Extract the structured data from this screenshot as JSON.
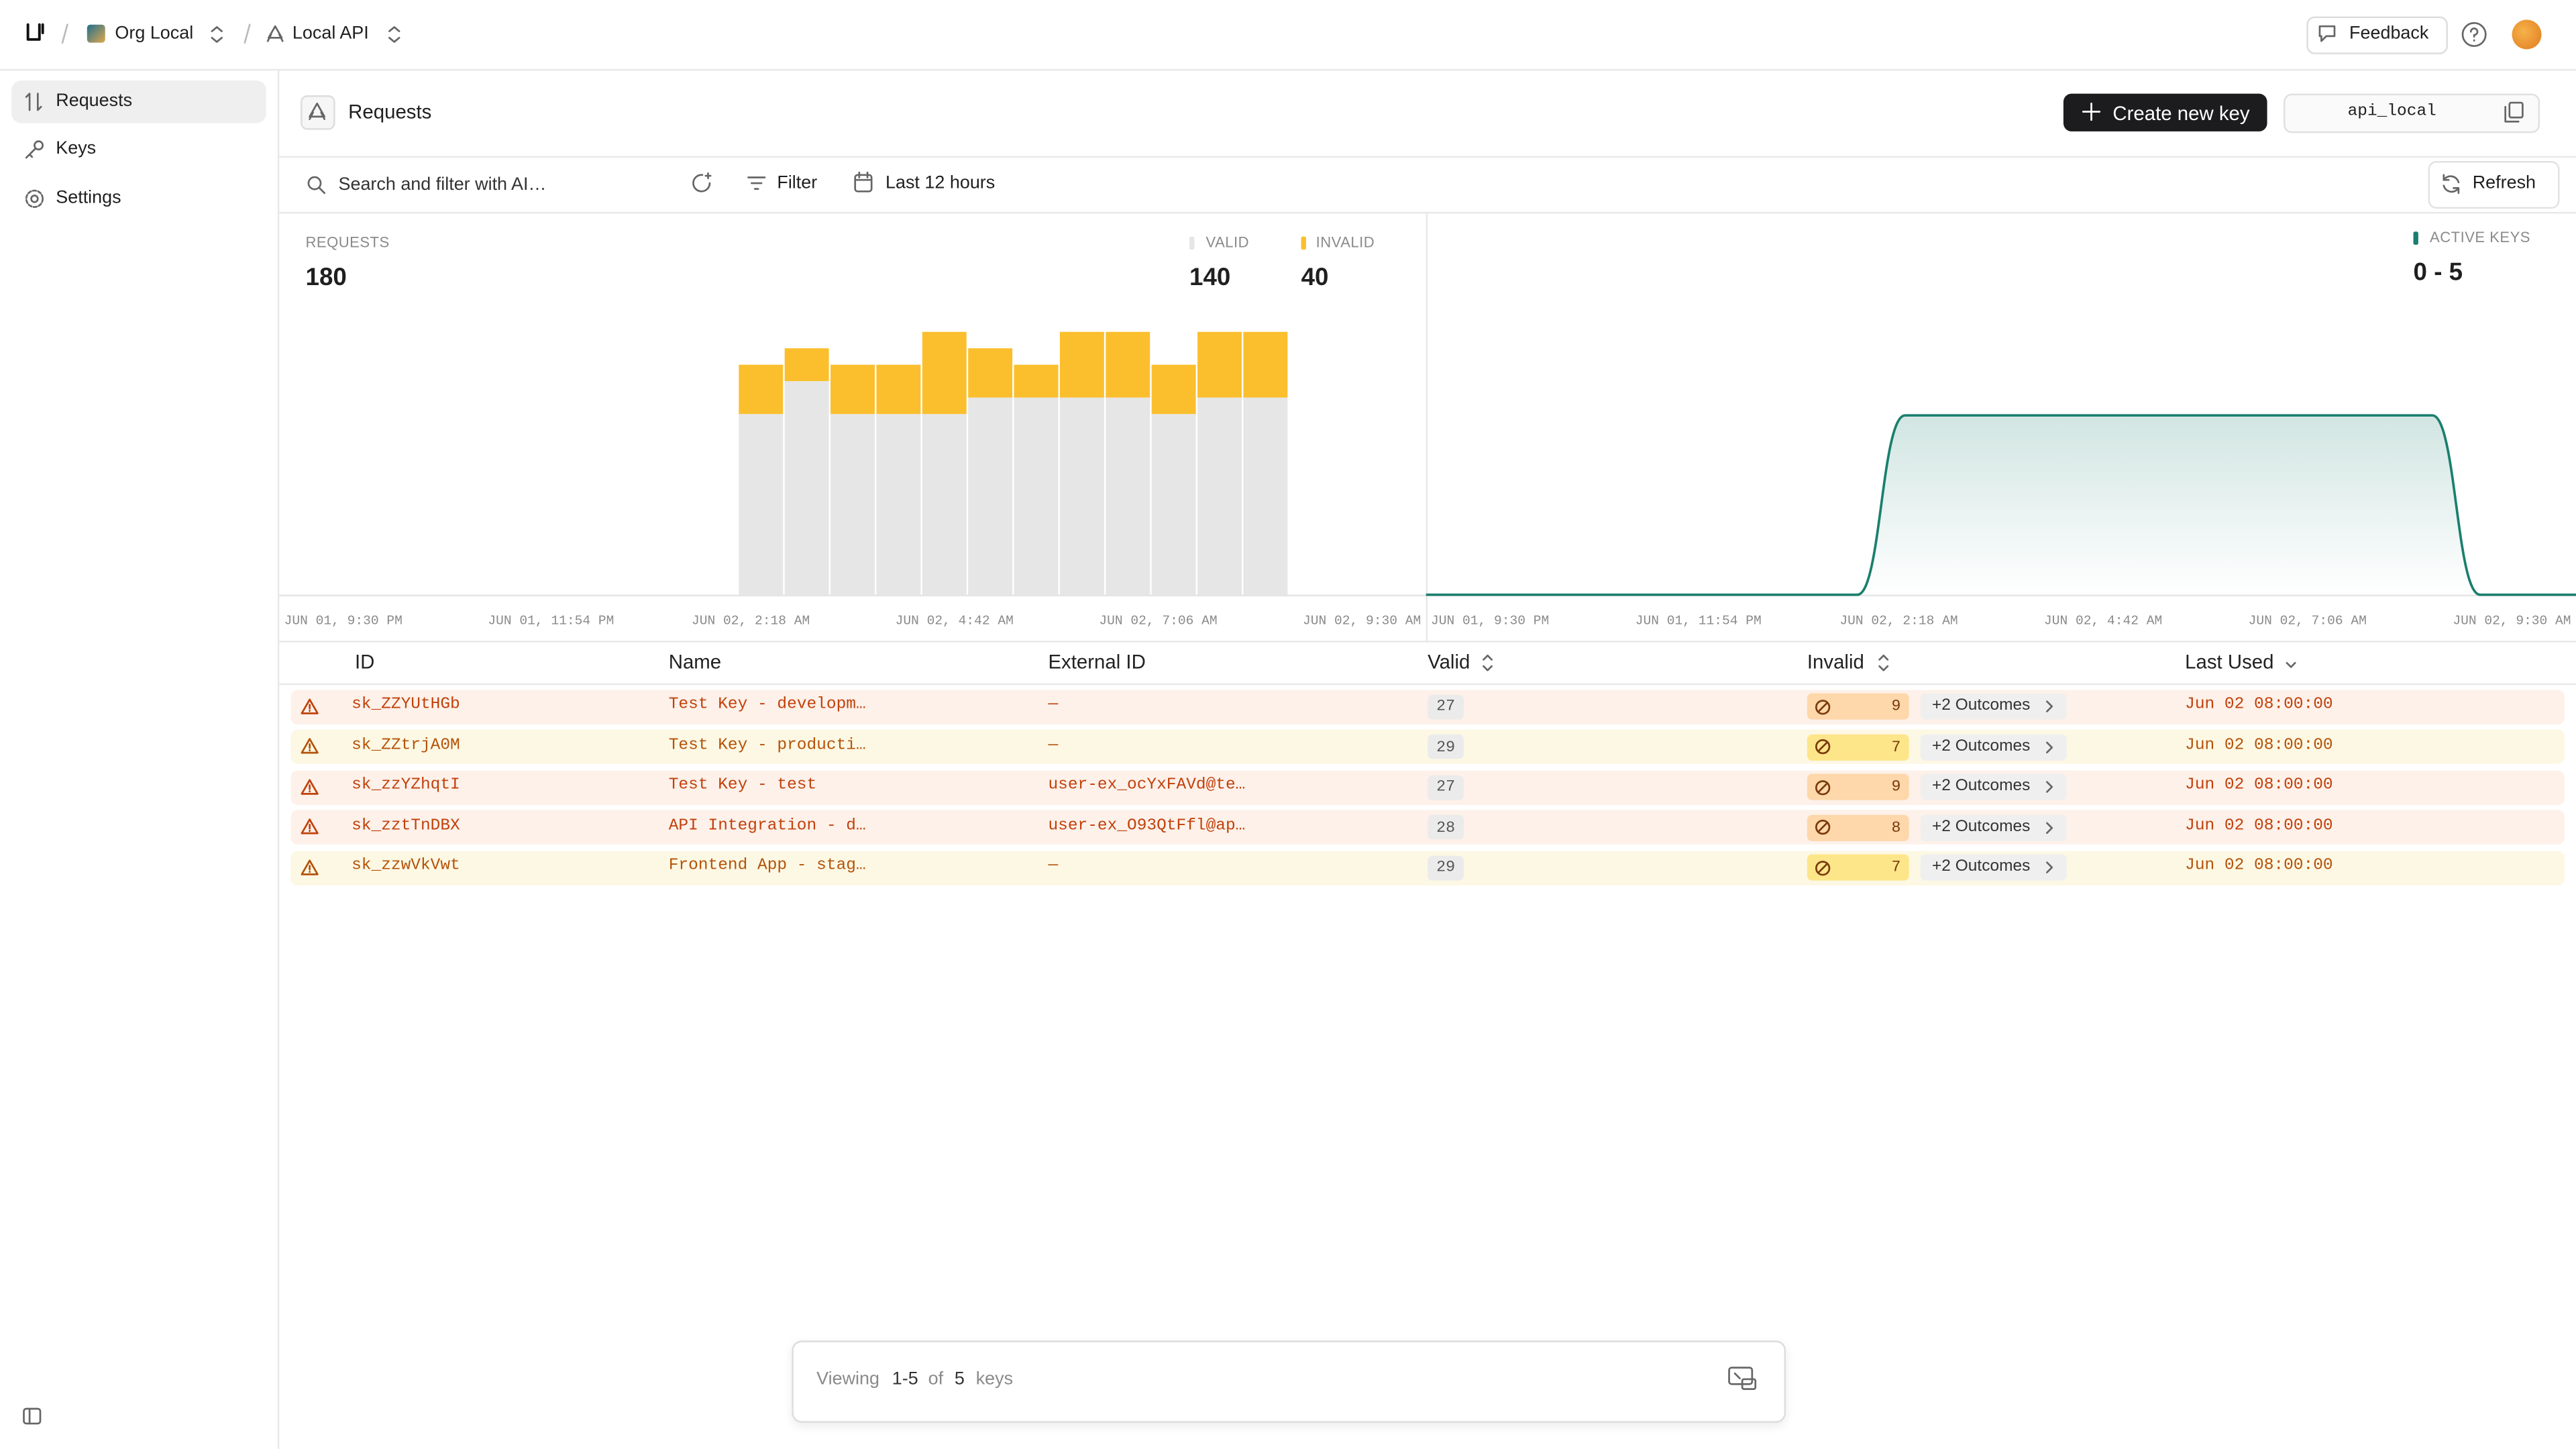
{
  "topbar": {
    "org": "Org Local",
    "api": "Local API",
    "feedback": "Feedback"
  },
  "sidebar": {
    "items": [
      "Requests",
      "Keys",
      "Settings"
    ]
  },
  "header": {
    "title": "Requests",
    "create_button": "Create new key",
    "api_id": "api_local"
  },
  "filters": {
    "search_placeholder": "Search and filter with AI…",
    "filter": "Filter",
    "time_range": "Last 12 hours",
    "refresh": "Refresh"
  },
  "chart_data": [
    {
      "type": "bar",
      "stacked": true,
      "title": "REQUESTS",
      "total": 180,
      "x_labels": [
        "JUN 01, 9:30 PM",
        "JUN 01, 11:54 PM",
        "JUN 02, 2:18 AM",
        "JUN 02, 4:42 AM",
        "JUN 02, 7:06 AM",
        "JUN 02, 9:30 AM"
      ],
      "ylim": [
        0,
        20
      ],
      "series": [
        {
          "name": "VALID",
          "color": "#e6e6e6",
          "total": 140,
          "values": [
            null,
            null,
            null,
            null,
            null,
            null,
            null,
            null,
            null,
            null,
            11,
            13,
            11,
            11,
            11,
            12,
            12,
            12,
            12,
            11,
            12,
            12,
            null,
            null,
            null
          ]
        },
        {
          "name": "INVALID",
          "color": "#fbbf2e",
          "total": 40,
          "values": [
            null,
            null,
            null,
            null,
            null,
            null,
            null,
            null,
            null,
            null,
            3,
            2,
            3,
            3,
            5,
            3,
            2,
            4,
            4,
            3,
            4,
            4,
            null,
            null,
            null
          ]
        }
      ]
    },
    {
      "type": "area",
      "title": "ACTIVE KEYS",
      "range_label": "0 - 5",
      "x_labels": [
        "JUN 01, 9:30 PM",
        "JUN 01, 11:54 PM",
        "JUN 02, 2:18 AM",
        "JUN 02, 4:42 AM",
        "JUN 02, 7:06 AM",
        "JUN 02, 9:30 AM"
      ],
      "ylim": [
        0,
        6
      ],
      "series": [
        {
          "color": "#1a7f6e",
          "values": [
            0,
            0,
            0,
            0,
            0,
            0,
            0,
            0,
            0,
            0,
            5,
            5,
            5,
            5,
            5,
            5,
            5,
            5,
            5,
            5,
            5,
            5,
            0,
            0,
            0
          ]
        }
      ]
    }
  ],
  "table": {
    "columns": [
      "ID",
      "Name",
      "External ID",
      "Valid",
      "Invalid",
      "Last Used"
    ],
    "rows": [
      {
        "id": "sk_ZZYUtHGb",
        "name": "Test Key - developm…",
        "external_id": "—",
        "valid": 27,
        "invalid": 9,
        "outcomes": "+2 Outcomes",
        "last_used": "Jun 02 08:00:00",
        "background": "#fdf1e9",
        "color": "#c2410c",
        "badge": "#fed7aa"
      },
      {
        "id": "sk_ZZtrjA0M",
        "name": "Test Key - producti…",
        "external_id": "—",
        "valid": 29,
        "invalid": 7,
        "outcomes": "+2 Outcomes",
        "last_used": "Jun 02 08:00:00",
        "background": "#fdf8e4",
        "color": "#b45309",
        "badge": "#fde68a"
      },
      {
        "id": "sk_zzYZhqtI",
        "name": "Test Key - test",
        "external_id": "user-ex_ocYxFAVd@te…",
        "valid": 27,
        "invalid": 9,
        "outcomes": "+2 Outcomes",
        "last_used": "Jun 02 08:00:00",
        "background": "#fdf1e9",
        "color": "#c2410c",
        "badge": "#fed7aa"
      },
      {
        "id": "sk_zztTnDBX",
        "name": "API Integration - d…",
        "external_id": "user-ex_O93QtFfl@ap…",
        "valid": 28,
        "invalid": 8,
        "outcomes": "+2 Outcomes",
        "last_used": "Jun 02 08:00:00",
        "background": "#fdf1e9",
        "color": "#c2410c",
        "badge": "#fed7aa"
      },
      {
        "id": "sk_zzwVkVwt",
        "name": "Frontend App - stag…",
        "external_id": "—",
        "valid": 29,
        "invalid": 7,
        "outcomes": "+2 Outcomes",
        "last_used": "Jun 02 08:00:00",
        "background": "#fdf8e4",
        "color": "#b45309",
        "badge": "#fde68a"
      }
    ]
  },
  "footer": {
    "viewing": "Viewing",
    "range": "1-5",
    "of": "of",
    "total": 5,
    "unit": "keys"
  }
}
